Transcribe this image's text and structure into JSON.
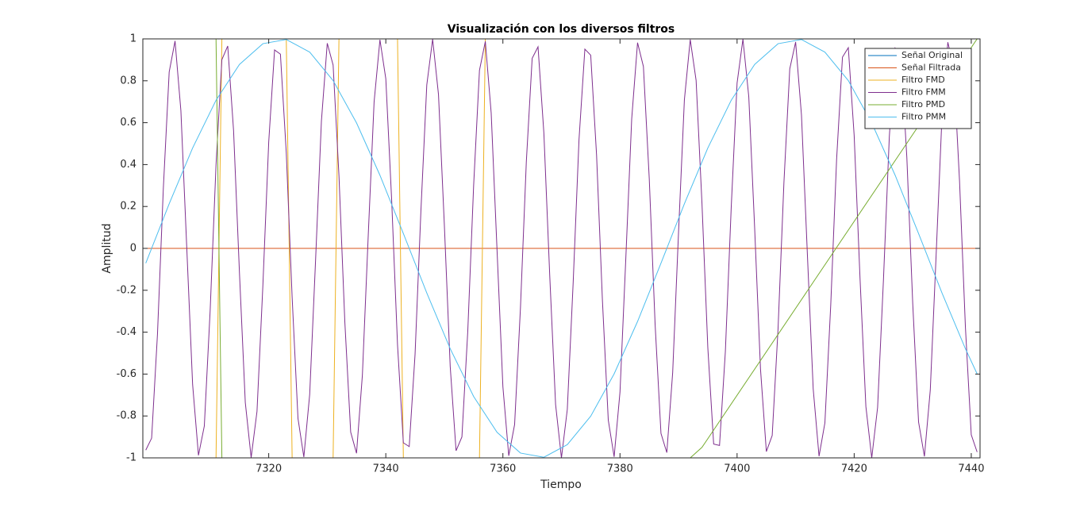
{
  "chart_data": {
    "type": "line",
    "title": "Visualización con los diversos filtros",
    "x_label": "Tiempo",
    "y_label": "Amplitud",
    "xlim": [
      7298.5,
      7441.5
    ],
    "xticks": [
      7320,
      7340,
      7360,
      7380,
      7400,
      7420,
      7440
    ],
    "ylim": [
      -1,
      1
    ],
    "yticks": [
      -1,
      -0.8,
      -0.6,
      -0.4,
      -0.2,
      0,
      0.2,
      0.4,
      0.6,
      0.8,
      1
    ],
    "legend": "top-right",
    "series": [
      {
        "name": "Señal Original",
        "color": "#0072BD",
        "x": [
          7299,
          7441
        ],
        "values": [
          0,
          0
        ]
      },
      {
        "name": "Señal Filtrada",
        "color": "#D95319",
        "x": [
          7299,
          7441
        ],
        "values": [
          0,
          0
        ]
      },
      {
        "name": "Filtro FMD",
        "color": "#EDB120",
        "x": [
          7299,
          7311,
          7312,
          7323,
          7324,
          7331,
          7332,
          7342,
          7343,
          7356,
          7357,
          7441
        ],
        "values": [
          -1,
          -1,
          1,
          1,
          -1,
          -1,
          1,
          1,
          -1,
          -1,
          1,
          1
        ]
      },
      {
        "name": "Filtro FMM",
        "color": "#7E2F8E",
        "x": [
          7299,
          7300,
          7301,
          7302,
          7303,
          7304,
          7305,
          7306,
          7307,
          7308,
          7309,
          7310,
          7311,
          7312,
          7313,
          7314,
          7315,
          7316,
          7317,
          7318,
          7319,
          7320,
          7321,
          7322,
          7323,
          7324,
          7325,
          7326,
          7327,
          7328,
          7329,
          7330,
          7331,
          7332,
          7333,
          7334,
          7335,
          7336,
          7337,
          7338,
          7339,
          7340,
          7341,
          7342,
          7343,
          7344,
          7345,
          7346,
          7347,
          7348,
          7349,
          7350,
          7351,
          7352,
          7353,
          7354,
          7355,
          7356,
          7357,
          7358,
          7359,
          7360,
          7361,
          7362,
          7363,
          7364,
          7365,
          7366,
          7367,
          7368,
          7369,
          7370,
          7371,
          7372,
          7373,
          7374,
          7375,
          7376,
          7377,
          7378,
          7379,
          7380,
          7381,
          7382,
          7383,
          7384,
          7385,
          7386,
          7387,
          7388,
          7389,
          7390,
          7391,
          7392,
          7393,
          7394,
          7395,
          7396,
          7397,
          7398,
          7399,
          7400,
          7401,
          7402,
          7403,
          7404,
          7405,
          7406,
          7407,
          7408,
          7409,
          7410,
          7411,
          7412,
          7413,
          7414,
          7415,
          7416,
          7417,
          7418,
          7419,
          7420,
          7421,
          7422,
          7423,
          7424,
          7425,
          7426,
          7427,
          7428,
          7429,
          7430,
          7431,
          7432,
          7433,
          7434,
          7435,
          7436,
          7437,
          7438,
          7439,
          7440,
          7441
        ],
        "values": [
          -0.963,
          -0.906,
          -0.409,
          0.286,
          0.842,
          0.99,
          0.657,
          0.005,
          -0.649,
          -0.988,
          -0.848,
          -0.296,
          0.399,
          0.901,
          0.966,
          0.561,
          -0.115,
          -0.736,
          -0.999,
          -0.778,
          -0.179,
          0.507,
          0.947,
          0.927,
          0.457,
          -0.234,
          -0.812,
          -0.996,
          -0.697,
          -0.059,
          0.607,
          0.979,
          0.875,
          0.347,
          -0.35,
          -0.877,
          -0.978,
          -0.605,
          0.062,
          0.699,
          0.996,
          0.81,
          0.231,
          -0.46,
          -0.928,
          -0.946,
          -0.504,
          0.182,
          0.78,
          0.999,
          0.734,
          0.112,
          -0.564,
          -0.966,
          -0.9,
          -0.396,
          0.299,
          0.85,
          0.988,
          0.646,
          -0.009,
          -0.66,
          -0.99,
          -0.841,
          -0.283,
          0.412,
          0.907,
          0.962,
          0.55,
          -0.129,
          -0.745,
          -1,
          -0.769,
          -0.165,
          0.519,
          0.951,
          0.922,
          0.445,
          -0.248,
          -0.82,
          -0.995,
          -0.686,
          -0.045,
          0.618,
          0.982,
          0.868,
          0.333,
          -0.363,
          -0.883,
          -0.975,
          -0.593,
          0.076,
          0.709,
          0.997,
          0.802,
          0.217,
          -0.473,
          -0.934,
          -0.941,
          -0.492,
          0.196,
          0.789,
          0.999,
          0.724,
          0.098,
          -0.576,
          -0.97,
          -0.893,
          -0.383,
          0.313,
          0.857,
          0.985,
          0.636,
          -0.023,
          -0.67,
          -0.992,
          -0.833,
          -0.269,
          0.425,
          0.913,
          0.958,
          0.538,
          -0.143,
          -0.755,
          -1,
          -0.76,
          -0.151,
          0.531,
          0.956,
          0.916,
          0.432,
          -0.262,
          -0.829,
          -0.993,
          -0.676,
          -0.031,
          0.63,
          0.984,
          0.861,
          0.32,
          -0.376,
          -0.89,
          -0.972
        ]
      },
      {
        "name": "Filtro PMD",
        "color": "#77AC30",
        "x": [
          7299,
          7311,
          7312,
          7392,
          7394,
          7441
        ],
        "values": [
          1,
          1,
          -1,
          -1,
          -0.95,
          1
        ]
      },
      {
        "name": "Filtro PMM",
        "color": "#4DBEEE",
        "x": [
          7299,
          7303,
          7307,
          7311,
          7315,
          7319,
          7323,
          7327,
          7331,
          7335,
          7339,
          7343,
          7347,
          7351,
          7355,
          7359,
          7363,
          7367,
          7371,
          7375,
          7379,
          7383,
          7387,
          7391,
          7395,
          7399,
          7403,
          7407,
          7411,
          7415,
          7419,
          7423,
          7427,
          7431,
          7435,
          7439,
          7441
        ],
        "values": [
          -0.071,
          0.213,
          0.479,
          0.707,
          0.878,
          0.977,
          0.997,
          0.937,
          0.801,
          0.599,
          0.349,
          0.071,
          -0.213,
          -0.479,
          -0.707,
          -0.878,
          -0.977,
          -0.997,
          -0.937,
          -0.801,
          -0.599,
          -0.349,
          -0.071,
          0.213,
          0.479,
          0.707,
          0.878,
          0.977,
          0.997,
          0.937,
          0.801,
          0.599,
          0.349,
          0.071,
          -0.213,
          -0.479,
          -0.599
        ]
      }
    ]
  }
}
